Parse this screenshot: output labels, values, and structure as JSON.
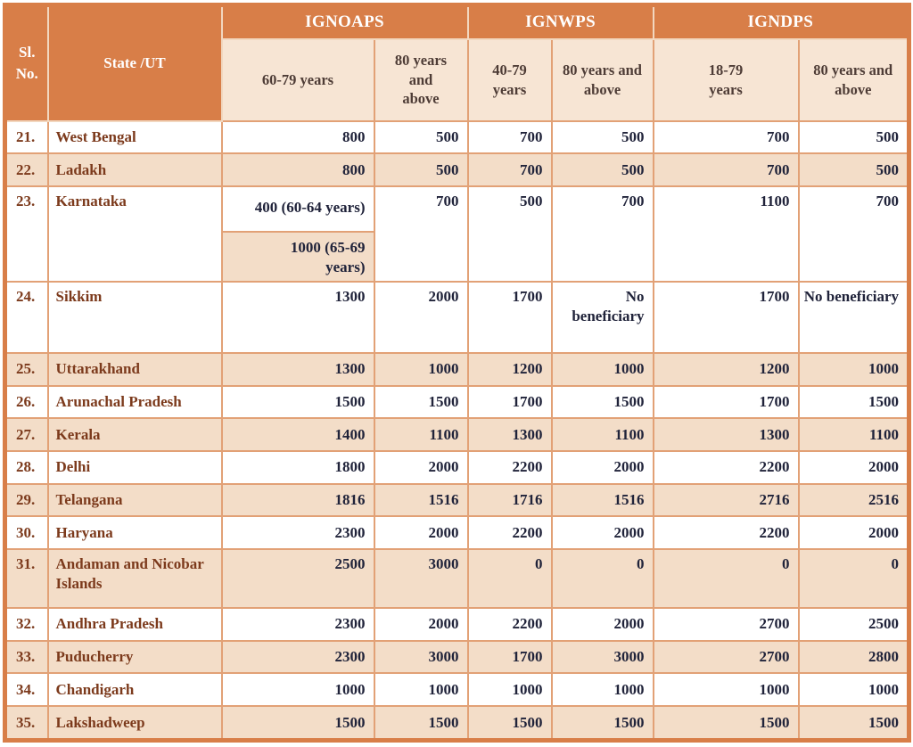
{
  "colors": {
    "orange": "#d87e48",
    "cream": "#f7e5d4",
    "shade": "#f3ddc8",
    "border": "#e2a176",
    "hborder": "#f2d7bf",
    "brown": "#7c3a1c",
    "num": "#20233a",
    "subtext": "#4e3c36"
  },
  "table": {
    "header": {
      "sl_no": [
        "Sl.",
        "No."
      ],
      "state_ut": "State /UT",
      "groups": [
        {
          "label": "IGNOAPS",
          "cols": [
            "60-79 years",
            "80 years and above"
          ]
        },
        {
          "label": "IGNWPS",
          "cols": [
            "40-79 years",
            "80 years and above"
          ]
        },
        {
          "label": "IGNDPS",
          "cols": [
            "18-79 years",
            "80 years and above"
          ]
        }
      ]
    },
    "rows": [
      {
        "sl": "21.",
        "state": "West Bengal",
        "shaded": false,
        "values": [
          "800",
          "500",
          "700",
          "500",
          "700",
          "500"
        ]
      },
      {
        "sl": "22.",
        "state": "Ladakh",
        "shaded": true,
        "values": [
          "800",
          "500",
          "700",
          "500",
          "700",
          "500"
        ]
      },
      {
        "sl": "23.",
        "state": "Karnataka",
        "shaded": false,
        "values": [
          [
            "400 (60-64 years)",
            "1000 (65-69 years)"
          ],
          "700",
          "500",
          "700",
          "1100",
          "700"
        ]
      },
      {
        "sl": "24.",
        "state": "Sikkim",
        "shaded": false,
        "values": [
          "1300",
          "2000",
          "1700",
          "No beneficiary",
          "1700",
          "No beneficiary"
        ]
      },
      {
        "sl": "25.",
        "state": "Uttarakhand",
        "shaded": true,
        "values": [
          "1300",
          "1000",
          "1200",
          "1000",
          "1200",
          "1000"
        ]
      },
      {
        "sl": "26.",
        "state": "Arunachal Pradesh",
        "shaded": false,
        "values": [
          "1500",
          "1500",
          "1700",
          "1500",
          "1700",
          "1500"
        ]
      },
      {
        "sl": "27.",
        "state": "Kerala",
        "shaded": true,
        "values": [
          "1400",
          "1100",
          "1300",
          "1100",
          "1300",
          "1100"
        ]
      },
      {
        "sl": "28.",
        "state": "Delhi",
        "shaded": false,
        "values": [
          "1800",
          "2000",
          "2200",
          "2000",
          "2200",
          "2000"
        ]
      },
      {
        "sl": "29.",
        "state": "Telangana",
        "shaded": true,
        "values": [
          "1816",
          "1516",
          "1716",
          "1516",
          "2716",
          "2516"
        ]
      },
      {
        "sl": "30.",
        "state": "Haryana",
        "shaded": false,
        "values": [
          "2300",
          "2000",
          "2200",
          "2000",
          "2200",
          "2000"
        ]
      },
      {
        "sl": "31.",
        "state": "Andaman and Nicobar Islands",
        "shaded": true,
        "values": [
          "2500",
          "3000",
          "0",
          "0",
          "0",
          "0"
        ]
      },
      {
        "sl": "32.",
        "state": "Andhra Pradesh",
        "shaded": false,
        "values": [
          "2300",
          "2000",
          "2200",
          "2000",
          "2700",
          "2500"
        ]
      },
      {
        "sl": "33.",
        "state": "Puducherry",
        "shaded": true,
        "values": [
          "2300",
          "3000",
          "1700",
          "3000",
          "2700",
          "2800"
        ]
      },
      {
        "sl": "34.",
        "state": "Chandigarh",
        "shaded": false,
        "values": [
          "1000",
          "1000",
          "1000",
          "1000",
          "1000",
          "1000"
        ]
      },
      {
        "sl": "35.",
        "state": "Lakshadweep",
        "shaded": true,
        "values": [
          "1500",
          "1500",
          "1500",
          "1500",
          "1500",
          "1500"
        ]
      }
    ]
  }
}
